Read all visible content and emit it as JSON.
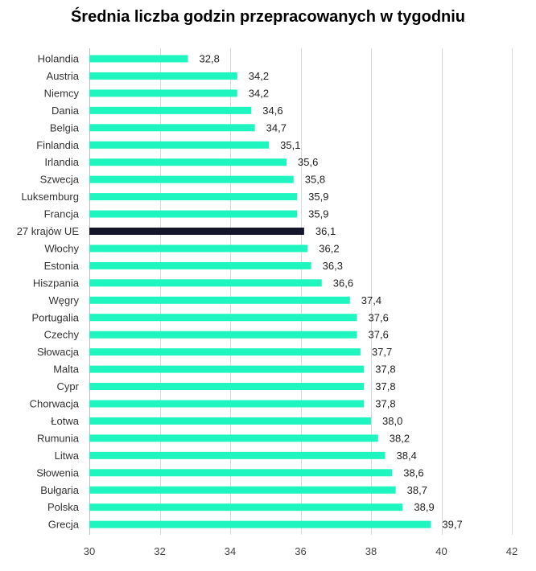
{
  "chart_data": {
    "type": "bar",
    "orientation": "horizontal",
    "title": "Średnia liczba godzin przepracowanych w tygodniu",
    "xlabel": "",
    "ylabel": "",
    "categories": [
      "Holandia",
      "Austria",
      "Niemcy",
      "Dania",
      "Belgia",
      "Finlandia",
      "Irlandia",
      "Szwecja",
      "Luksemburg",
      "Francja",
      "27 krajów UE",
      "Włochy",
      "Estonia",
      "Hiszpania",
      "Węgry",
      "Portugalia",
      "Czechy",
      "Słowacja",
      "Malta",
      "Cypr",
      "Chorwacja",
      "Łotwa",
      "Rumunia",
      "Litwa",
      "Słowenia",
      "Bułgaria",
      "Polska",
      "Grecja"
    ],
    "values": [
      32.8,
      34.2,
      34.2,
      34.6,
      34.7,
      35.1,
      35.6,
      35.8,
      35.9,
      35.9,
      36.1,
      36.2,
      36.3,
      36.6,
      37.4,
      37.6,
      37.6,
      37.7,
      37.8,
      37.8,
      37.8,
      38.0,
      38.2,
      38.4,
      38.6,
      38.7,
      38.9,
      39.7
    ],
    "value_labels": [
      "32,8",
      "34,2",
      "34,2",
      "34,6",
      "34,7",
      "35,1",
      "35,6",
      "35,8",
      "35,9",
      "35,9",
      "36,1",
      "36,2",
      "36,3",
      "36,6",
      "37,4",
      "37,6",
      "37,6",
      "37,7",
      "37,8",
      "37,8",
      "37,8",
      "38,0",
      "38,2",
      "38,4",
      "38,6",
      "38,7",
      "38,9",
      "39,7"
    ],
    "xlim": [
      30,
      42
    ],
    "x_ticks": [
      30,
      32,
      34,
      36,
      38,
      40,
      42
    ],
    "x_tick_labels": [
      "30",
      "32",
      "34",
      "36",
      "38",
      "40",
      "42"
    ],
    "grid": "vertical",
    "legend": "none",
    "highlight_category": "27 krajów UE",
    "colors": {
      "bar": "#1ef5bf",
      "highlight_bar": "#14142b",
      "grid": "#d9d9d9",
      "axis": "#bfbfbf"
    }
  }
}
